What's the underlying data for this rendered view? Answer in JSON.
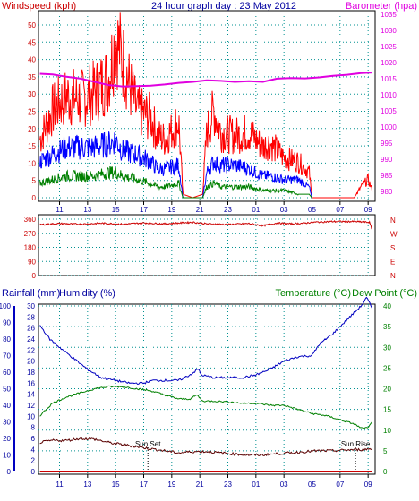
{
  "colors": {
    "wind_avg": "#0000ff",
    "wind_gust": "#ff0000",
    "wind_dir": "#cc0000",
    "barometer": "#e000e0",
    "temperature": "#008000",
    "dewpoint": "#5a0000",
    "humidity": "#0000c0",
    "rainfall": "#cc0000",
    "grid": "#009090",
    "wind_grad": "#008000"
  },
  "chart_data": [
    {
      "type": "line",
      "title": "24 hour graph day : 23 May 2012",
      "left_axis_title": "Windspeed (kph)",
      "right_axis_title": "Barometer (hpa)",
      "left_ticks": [
        "0",
        "5",
        "10",
        "15",
        "20",
        "25",
        "30",
        "35",
        "40",
        "45",
        "50"
      ],
      "right_ticks": [
        "980",
        "985",
        "990",
        "995",
        "1000",
        "1005",
        "1010",
        "1015",
        "1020",
        "1025",
        "1030",
        "1035"
      ],
      "x_ticks": [
        "11",
        "13",
        "15",
        "17",
        "19",
        "21",
        "23",
        "01",
        "03",
        "05",
        "07",
        "09"
      ],
      "ylim_left": [
        0,
        50
      ],
      "ylim_right": [
        978,
        1035
      ],
      "hours_range": [
        9.5,
        33.5
      ],
      "grid": true,
      "series": [
        {
          "name": "Windspeed (kph)",
          "kind": "gust",
          "x": [
            9.6,
            10.5,
            11.5,
            12.5,
            13.5,
            14.5,
            15.0,
            15.5,
            16.5,
            17.5,
            18.0,
            18.5,
            19.5,
            19.8,
            20.5,
            21.2,
            21.5,
            22.0,
            22.5,
            23.5,
            24.5,
            25.5,
            26.0,
            27.0,
            28.0,
            28.8,
            29.0,
            31.0,
            32.0,
            32.5,
            33.0,
            33.3
          ],
          "y": [
            16,
            24,
            28,
            27,
            29,
            33,
            44,
            38,
            24,
            22,
            17,
            16,
            21,
            1,
            0,
            1,
            18,
            24,
            18,
            17,
            18,
            14,
            15,
            11,
            10,
            7,
            0,
            0,
            0,
            3,
            5,
            2
          ]
        },
        {
          "name": "",
          "kind": "avg",
          "x": [
            9.6,
            10.5,
            11.5,
            12.5,
            13.5,
            14.5,
            15.0,
            15.5,
            16.5,
            17.5,
            18.0,
            18.5,
            19.5,
            19.8,
            20.5,
            21.2,
            21.5,
            22.0,
            22.5,
            23.5,
            24.5,
            25.5,
            26.0,
            27.0,
            28.0,
            28.8,
            29.0
          ],
          "y": [
            10,
            12,
            14,
            14,
            14,
            15,
            16,
            13,
            12,
            10,
            8,
            8,
            9,
            0,
            0,
            0,
            7,
            10,
            9,
            9,
            8,
            6,
            6,
            5,
            5,
            3,
            0
          ]
        },
        {
          "name": "",
          "kind": "low",
          "x": [
            9.6,
            10.5,
            11.5,
            12.5,
            13.5,
            14.5,
            15.0,
            15.5,
            16.5,
            17.5,
            18.0,
            18.5,
            19.5,
            19.8,
            20.5,
            21.2,
            21.5,
            22.0,
            22.5,
            23.5,
            24.5,
            25.5,
            26.0,
            27.0,
            28.0,
            28.8,
            29.0
          ],
          "y": [
            4,
            5,
            6,
            6,
            6,
            7,
            7,
            6,
            5,
            4,
            3,
            3,
            4,
            0,
            0,
            0,
            3,
            4,
            3,
            3,
            3,
            2,
            2,
            2,
            1,
            1,
            0
          ]
        },
        {
          "name": "Barometer (hpa)",
          "axis": "right",
          "x": [
            9.6,
            10.5,
            11.5,
            12.5,
            13.5,
            14.5,
            15.5,
            16.5,
            17.5,
            18.5,
            19.5,
            20.5,
            21.5,
            22.5,
            23.5,
            24.5,
            25.5,
            26.5,
            27.5,
            28.5,
            29.5,
            30.5,
            31.5,
            32.5,
            33.3
          ],
          "y": [
            1016.5,
            1016.3,
            1015.6,
            1015.0,
            1014.0,
            1013.0,
            1012.6,
            1012.7,
            1012.8,
            1013.2,
            1013.7,
            1014.0,
            1014.5,
            1014.3,
            1014.0,
            1014.2,
            1014.0,
            1015.0,
            1015.2,
            1015.1,
            1015.4,
            1015.9,
            1016.2,
            1016.7,
            1016.9
          ]
        }
      ]
    },
    {
      "type": "line",
      "title": "",
      "left_ticks": [
        "360",
        "270",
        "180",
        "90",
        "0"
      ],
      "right_letters": [
        "N",
        "W",
        "S",
        "E",
        "N"
      ],
      "ylim": [
        0,
        360
      ],
      "series": [
        {
          "name": "",
          "x": [
            9.6,
            11.0,
            12.5,
            14.0,
            15.5,
            17.0,
            18.5,
            20.0,
            20.5,
            21.5,
            23.0,
            24.5,
            25.5,
            26.5,
            27.5,
            28.5,
            29.0,
            30.5,
            32.0,
            33.1,
            33.25,
            33.3
          ],
          "y": [
            325,
            332,
            328,
            334,
            328,
            336,
            330,
            338,
            340,
            330,
            326,
            332,
            318,
            335,
            330,
            335,
            340,
            345,
            345,
            340,
            300,
            270
          ]
        }
      ]
    },
    {
      "type": "line",
      "title": "",
      "axis_titles": [
        "Rainfall (mm)",
        "Humidity (%)",
        "Temperature (°C)",
        "Dew Point (°C)"
      ],
      "rain_ticks": [
        "0",
        "10",
        "20",
        "30",
        "40",
        "50",
        "60",
        "70",
        "80",
        "90",
        "100"
      ],
      "humidity_ticks": [
        "0",
        "2",
        "4",
        "6",
        "8",
        "10",
        "12",
        "14",
        "16",
        "18",
        "20",
        "22",
        "24",
        "26",
        "28",
        "30"
      ],
      "temp_ticks": [
        "0",
        "5",
        "10",
        "15",
        "20",
        "25",
        "30",
        "35",
        "40"
      ],
      "x_ticks": [
        "11",
        "13",
        "15",
        "17",
        "19",
        "21",
        "23",
        "01",
        "03",
        "05",
        "07",
        "09"
      ],
      "ylim_temp": [
        0,
        40
      ],
      "annotations": [
        {
          "text": "Sun Set",
          "x": 17.3
        },
        {
          "text": "Sun Rise",
          "x": 32.1
        }
      ],
      "series": [
        {
          "name": "Humidity (%)",
          "axis": "humidity",
          "x": [
            9.6,
            10.3,
            11.0,
            12.0,
            13.0,
            14.0,
            15.0,
            16.0,
            17.0,
            17.6,
            18.5,
            19.5,
            20.3,
            20.9,
            21.1,
            22.0,
            23.0,
            24.0,
            25.0,
            26.0,
            27.0,
            28.0,
            29.0,
            29.5,
            30.5,
            31.5,
            32.5,
            32.9,
            33.3
          ],
          "y": [
            26.5,
            24.0,
            22.5,
            20.5,
            18.5,
            17.0,
            16.5,
            16.0,
            16.0,
            16.5,
            16.5,
            16.5,
            17.5,
            18.6,
            17.5,
            17.0,
            17.0,
            17.0,
            17.5,
            18.5,
            20.0,
            20.8,
            21.0,
            23.0,
            25.0,
            27.5,
            30.0,
            31.5,
            29.5
          ]
        },
        {
          "name": "Temperature (°C)",
          "axis": "temp",
          "x": [
            9.6,
            10.5,
            11.5,
            12.5,
            13.5,
            14.5,
            15.5,
            16.5,
            17.5,
            18.5,
            19.5,
            20.3,
            20.8,
            21.2,
            22.0,
            23.0,
            24.0,
            25.0,
            26.0,
            27.0,
            28.0,
            29.0,
            30.0,
            31.0,
            32.0,
            32.5,
            33.0,
            33.3
          ],
          "y": [
            13.5,
            16.5,
            18.0,
            19.0,
            20.0,
            20.5,
            20.5,
            20.0,
            19.5,
            18.5,
            17.5,
            17.5,
            18.5,
            17.0,
            17.0,
            16.8,
            16.5,
            16.5,
            16.0,
            16.0,
            15.0,
            14.0,
            13.5,
            12.5,
            11.5,
            10.5,
            10.5,
            12.0
          ]
        },
        {
          "name": "Dew Point (°C)",
          "axis": "temp",
          "x": [
            9.6,
            10.5,
            11.5,
            12.5,
            13.5,
            14.5,
            15.5,
            16.5,
            17.5,
            18.5,
            19.5,
            20.5,
            21.5,
            22.5,
            23.5,
            24.5,
            25.5,
            26.5,
            27.5,
            28.5,
            29.5,
            30.5,
            31.5,
            32.5,
            33.3
          ],
          "y": [
            7.0,
            7.5,
            7.5,
            8.0,
            7.8,
            7.0,
            6.5,
            6.0,
            5.5,
            5.0,
            4.5,
            4.8,
            4.8,
            4.5,
            4.2,
            4.0,
            4.0,
            4.3,
            4.5,
            4.8,
            5.0,
            5.0,
            5.2,
            5.3,
            5.5
          ]
        },
        {
          "name": "Rainfall (mm)",
          "axis": "rain",
          "x": [
            9.6,
            33.3
          ],
          "y": [
            0,
            0
          ]
        }
      ]
    }
  ]
}
